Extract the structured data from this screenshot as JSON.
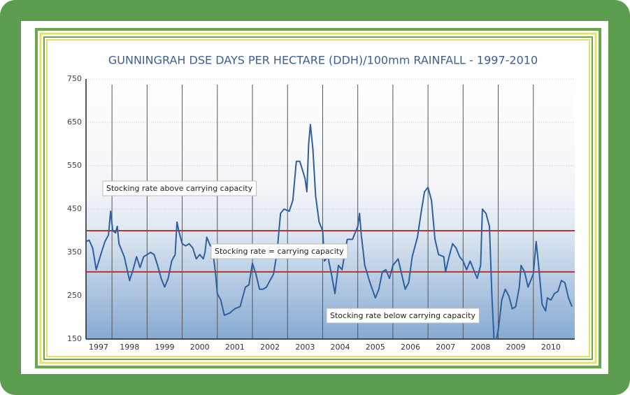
{
  "chart_data": {
    "type": "line",
    "title": "GUNNINGRAH DSE DAYS PER HECTARE (DDH)/100mm RAINFALL - 1997-2010",
    "ylim": [
      150,
      750
    ],
    "yticks": [
      150,
      250,
      350,
      450,
      550,
      650,
      750
    ],
    "xlim": [
      1997.26,
      2011.18
    ],
    "xticks": [
      1997,
      1998,
      1999,
      2000,
      2001,
      2002,
      2003,
      2004,
      2005,
      2006,
      2007,
      2008,
      2009,
      2010
    ],
    "grid": true,
    "series": [
      {
        "color": "#2f5fa0",
        "x": [
          1997.26,
          1997.35,
          1997.45,
          1997.55,
          1997.7,
          1997.8,
          1997.9,
          1997.96,
          1998.02,
          1998.1,
          1998.15,
          1998.2,
          1998.35,
          1998.5,
          1998.6,
          1998.7,
          1998.8,
          1998.9,
          1999.0,
          1999.1,
          1999.2,
          1999.3,
          1999.4,
          1999.5,
          1999.6,
          1999.7,
          1999.8,
          1999.85,
          1999.9,
          2000.0,
          2000.1,
          2000.2,
          2000.3,
          2000.4,
          2000.5,
          2000.6,
          2000.65,
          2000.7,
          2000.8,
          2000.85,
          2000.95,
          2001.0,
          2001.1,
          2001.2,
          2001.35,
          2001.5,
          2001.65,
          2001.8,
          2001.9,
          2002.0,
          2002.1,
          2002.2,
          2002.3,
          2002.4,
          2002.5,
          2002.6,
          2002.7,
          2002.8,
          2002.9,
          2003.05,
          2003.15,
          2003.25,
          2003.35,
          2003.5,
          2003.55,
          2003.6,
          2003.65,
          2003.72,
          2003.8,
          2003.9,
          2004.0,
          2004.05,
          2004.15,
          2004.25,
          2004.35,
          2004.45,
          2004.55,
          2004.7,
          2004.85,
          2005.0,
          2005.05,
          2005.1,
          2005.2,
          2005.35,
          2005.5,
          2005.6,
          2005.7,
          2005.8,
          2005.9,
          2006.0,
          2006.15,
          2006.25,
          2006.35,
          2006.45,
          2006.55,
          2006.7,
          2006.8,
          2006.9,
          2007.0,
          2007.1,
          2007.2,
          2007.3,
          2007.45,
          2007.5,
          2007.6,
          2007.7,
          2007.8,
          2007.9,
          2008.0,
          2008.1,
          2008.2,
          2008.3,
          2008.4,
          2008.5,
          2008.55,
          2008.65,
          2008.75,
          2008.82,
          2008.88,
          2008.95,
          2009.0,
          2009.1,
          2009.2,
          2009.3,
          2009.4,
          2009.5,
          2009.6,
          2009.65,
          2009.75,
          2009.85,
          2010.0,
          2010.08,
          2010.15,
          2010.25,
          2010.35,
          2010.4,
          2010.5,
          2010.6,
          2010.7,
          2010.8,
          2010.9,
          2011.0,
          2011.1
        ],
        "values": [
          375,
          378,
          360,
          310,
          350,
          375,
          390,
          445,
          400,
          395,
          410,
          370,
          340,
          285,
          310,
          340,
          315,
          340,
          345,
          350,
          345,
          320,
          290,
          270,
          290,
          330,
          345,
          420,
          400,
          370,
          365,
          370,
          360,
          335,
          345,
          335,
          350,
          385,
          365,
          368,
          300,
          255,
          240,
          205,
          210,
          220,
          225,
          270,
          275,
          325,
          300,
          265,
          265,
          270,
          285,
          300,
          350,
          440,
          450,
          445,
          470,
          560,
          560,
          520,
          490,
          600,
          645,
          590,
          480,
          420,
          400,
          330,
          340,
          300,
          255,
          320,
          310,
          380,
          380,
          410,
          440,
          390,
          320,
          280,
          245,
          265,
          305,
          310,
          290,
          320,
          335,
          300,
          265,
          280,
          340,
          385,
          440,
          490,
          500,
          470,
          380,
          345,
          340,
          305,
          340,
          370,
          360,
          340,
          330,
          310,
          330,
          310,
          290,
          320,
          450,
          440,
          410,
          250,
          150,
          150,
          170,
          240,
          265,
          250,
          220,
          225,
          270,
          320,
          305,
          270,
          300,
          375,
          320,
          230,
          215,
          245,
          240,
          255,
          260,
          285,
          280,
          245,
          225
        ]
      }
    ],
    "reference_lines": [
      {
        "value": 400,
        "color": "#c0302c"
      },
      {
        "value": 305,
        "color": "#c0302c"
      }
    ],
    "annotations": [
      {
        "text": "Stocking rate above carrying capacity"
      },
      {
        "text": "Stocking rate = carrying capacity"
      },
      {
        "text": "Stocking rate below carrying capacity"
      }
    ]
  }
}
